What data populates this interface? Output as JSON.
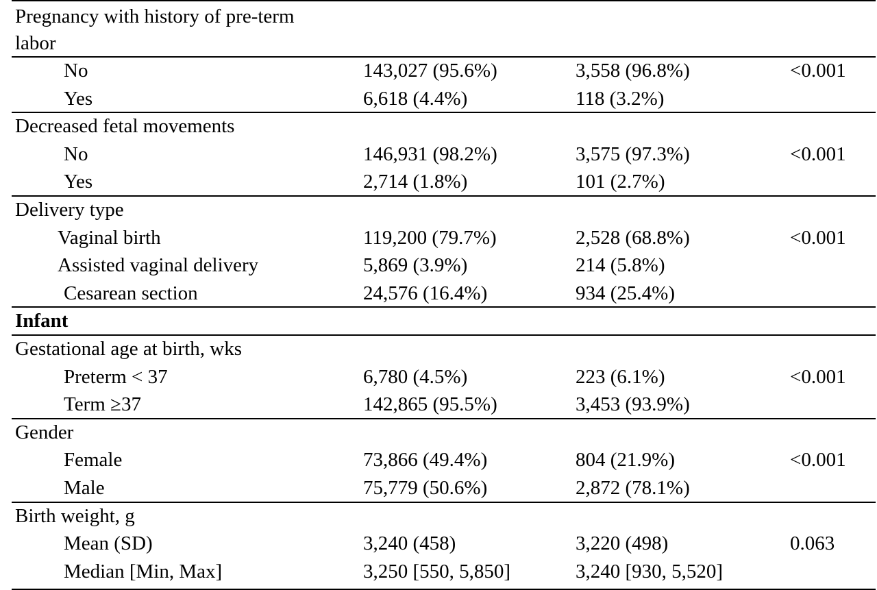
{
  "table": {
    "rows": [
      {
        "kind": "header",
        "label": "Pregnancy with history of pre-term labor",
        "label_lines": [
          "Pregnancy with history of pre-term",
          "labor"
        ]
      },
      {
        "kind": "sub",
        "label": "No",
        "col1": "143,027 (95.6%)",
        "col2": "3,558 (96.8%)",
        "p": "<0.001"
      },
      {
        "kind": "sub",
        "label": "Yes",
        "col1": "6,618 (4.4%)",
        "col2": "118 (3.2%)",
        "p": ""
      },
      {
        "kind": "header",
        "label": "Decreased fetal movements"
      },
      {
        "kind": "sub",
        "label": "No",
        "col1": "146,931 (98.2%)",
        "col2": "3,575 (97.3%)",
        "p": "<0.001"
      },
      {
        "kind": "sub",
        "label": "Yes",
        "col1": "2,714 (1.8%)",
        "col2": "101 (2.7%)",
        "p": ""
      },
      {
        "kind": "header",
        "label": "Delivery type"
      },
      {
        "kind": "sub",
        "label": "Vaginal birth",
        "col1": "119,200 (79.7%)",
        "col2": "2,528 (68.8%)",
        "p": "<0.001"
      },
      {
        "kind": "sub",
        "label": "Assisted vaginal delivery",
        "col1": "5,869 (3.9%)",
        "col2": "214 (5.8%)",
        "p": ""
      },
      {
        "kind": "sub",
        "label": "Cesarean section",
        "col1": "24,576 (16.4%)",
        "col2": "934 (25.4%)",
        "p": ""
      },
      {
        "kind": "section",
        "label": "Infant"
      },
      {
        "kind": "header",
        "label": "Gestational age at birth, wks"
      },
      {
        "kind": "sub",
        "label": "Preterm < 37",
        "col1": "6,780 (4.5%)",
        "col2": "223 (6.1%)",
        "p": "<0.001"
      },
      {
        "kind": "sub",
        "label": "Term ≥37",
        "col1": "142,865 (95.5%)",
        "col2": "3,453 (93.9%)",
        "p": ""
      },
      {
        "kind": "header",
        "label": "Gender"
      },
      {
        "kind": "sub",
        "label": "Female",
        "col1": "73,866 (49.4%)",
        "col2": "804 (21.9%)",
        "p": "<0.001"
      },
      {
        "kind": "sub",
        "label": "Male",
        "col1": "75,779 (50.6%)",
        "col2": "2,872 (78.1%)",
        "p": ""
      },
      {
        "kind": "header",
        "label": "Birth weight, g"
      },
      {
        "kind": "sub",
        "label": "Mean (SD)",
        "col1": "3,240 (458)",
        "col2": "3,220 (498)",
        "p": "0.063"
      },
      {
        "kind": "sub",
        "label": "Median [Min, Max]",
        "col1": "3,250 [550, 5,850]",
        "col2": "3,240 [930, 5,520]",
        "p": ""
      }
    ]
  }
}
